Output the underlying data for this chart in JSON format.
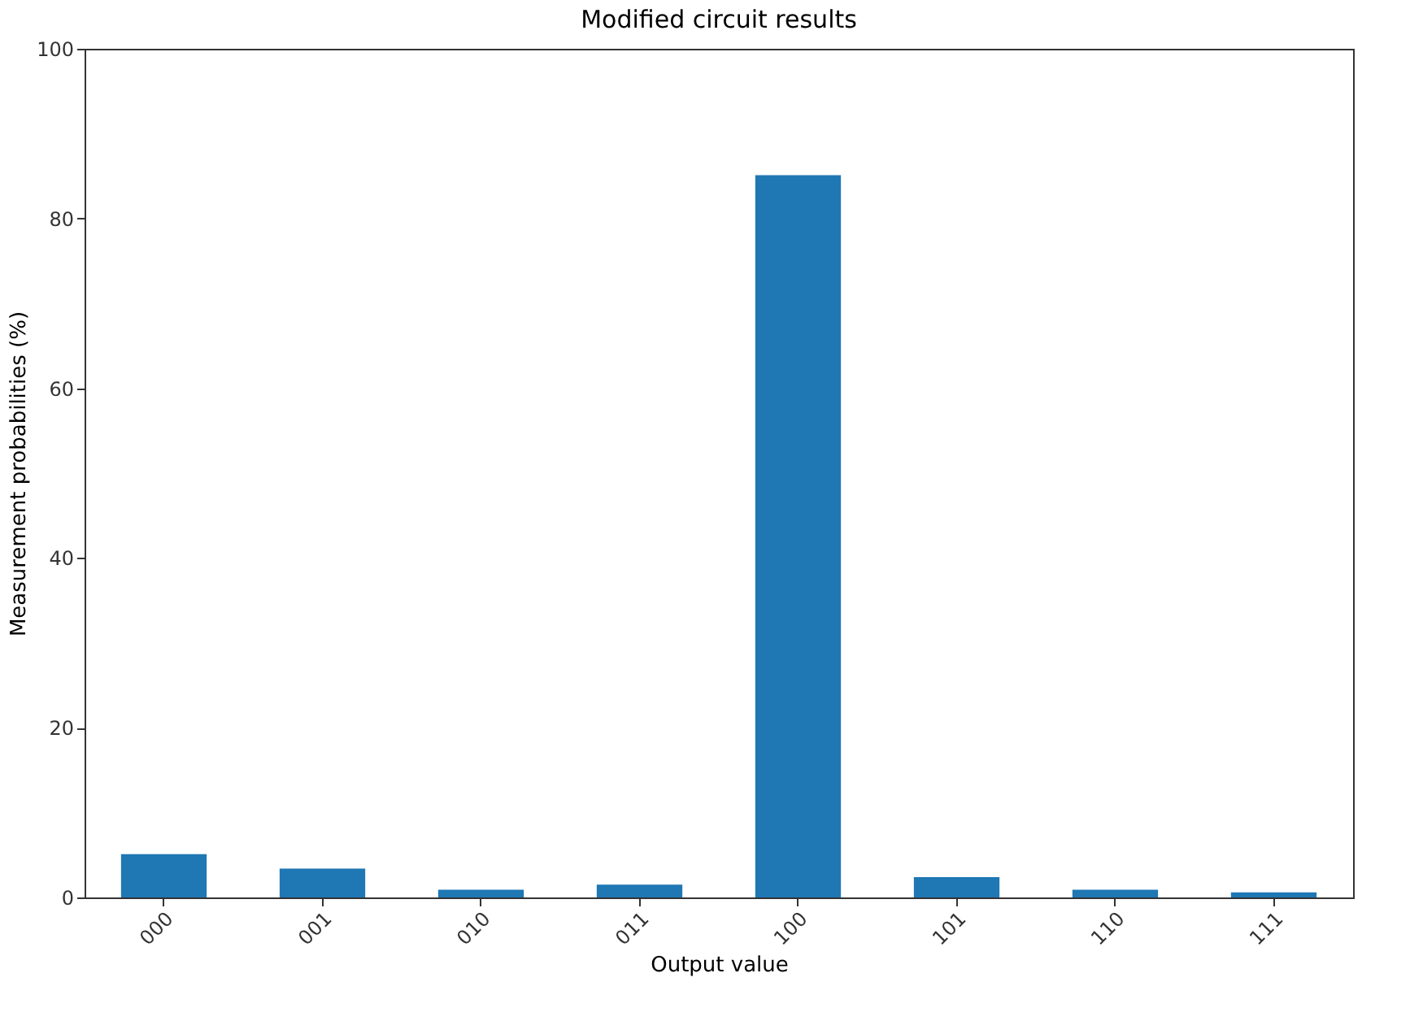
{
  "chart_data": {
    "type": "bar",
    "title": "Modified circuit results",
    "xlabel": "Output value",
    "ylabel": "Measurement probabilities (%)",
    "categories": [
      "000",
      "001",
      "010",
      "011",
      "100",
      "101",
      "110",
      "111"
    ],
    "values": [
      5.1,
      3.4,
      0.9,
      1.5,
      85.1,
      2.4,
      0.9,
      0.6
    ],
    "color": "#1f77b4",
    "ylim": [
      0,
      100
    ],
    "yticks": [
      0,
      20,
      40,
      60,
      80,
      100
    ],
    "grid": false
  }
}
